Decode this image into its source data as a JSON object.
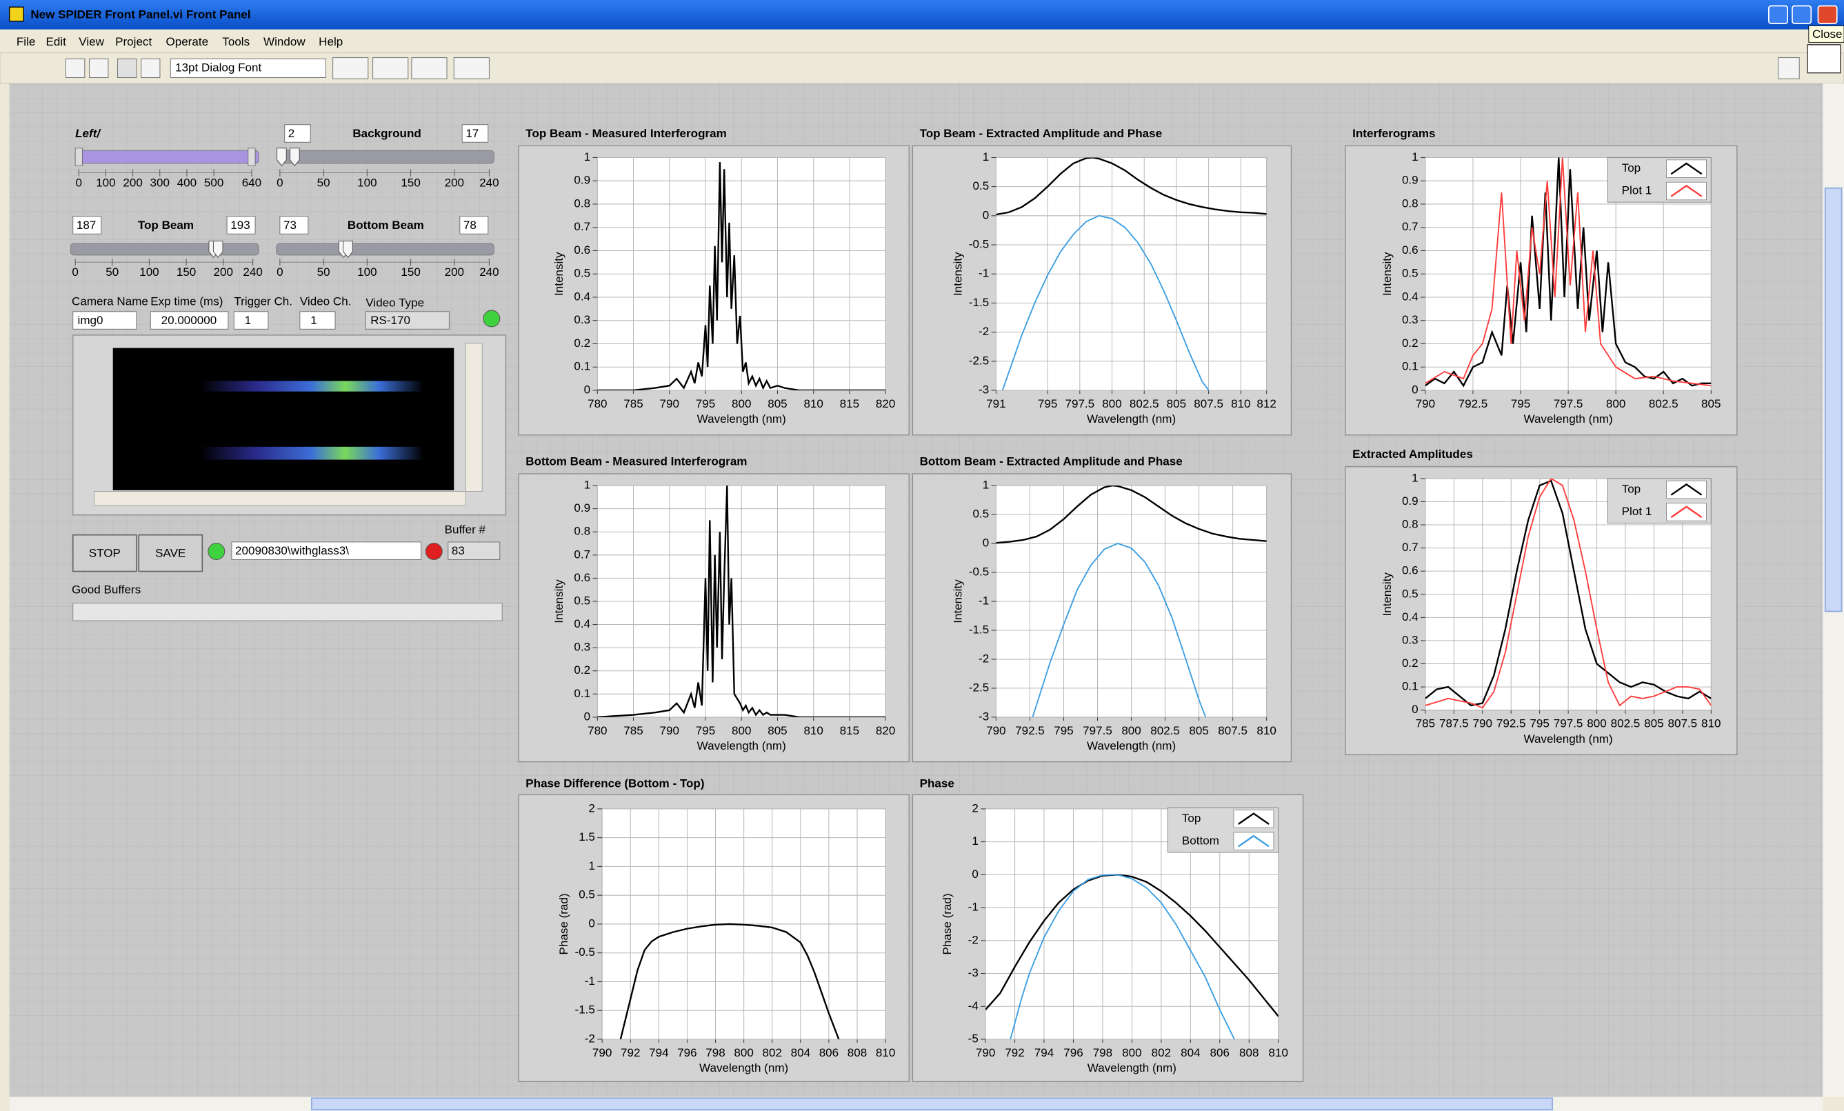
{
  "window": {
    "title": "New SPIDER Front Panel.vi Front Panel",
    "close_tip": "Close"
  },
  "menu": [
    "File",
    "Edit",
    "View",
    "Project",
    "Operate",
    "Tools",
    "Window",
    "Help"
  ],
  "toolbar": {
    "font": "13pt Dialog Font"
  },
  "controls": {
    "left": {
      "label": "Left/",
      "xlim": [
        0,
        640
      ],
      "xticks": [
        0,
        100,
        200,
        300,
        400,
        500,
        640
      ]
    },
    "background": {
      "label": "Background",
      "low": 2,
      "high": 17,
      "xlim": [
        0,
        240
      ],
      "xticks": [
        0,
        50,
        100,
        150,
        200,
        240
      ]
    },
    "top_beam": {
      "label": "Top Beam",
      "low": 187,
      "high": 193,
      "xlim": [
        0,
        240
      ],
      "xticks": [
        0,
        50,
        100,
        150,
        200,
        240
      ]
    },
    "bottom_beam": {
      "label": "Bottom Beam",
      "low": 73,
      "high": 78,
      "xlim": [
        0,
        240
      ],
      "xticks": [
        0,
        50,
        100,
        150,
        200,
        240
      ]
    },
    "camera": [
      {
        "label": "Camera Name",
        "value": "img0"
      },
      {
        "label": "Exp time (ms)",
        "value": "20.000000"
      },
      {
        "label": "Trigger Ch.",
        "value": "1"
      },
      {
        "label": "Video Ch.",
        "value": "1"
      },
      {
        "label": "Video Type",
        "value": "RS-170"
      }
    ],
    "stop": "STOP",
    "save": "SAVE",
    "path": "20090830\\withglass3\\",
    "buffer_label": "Buffer #",
    "buffer": 83,
    "good_buffers": "Good Buffers"
  },
  "chart_data": [
    {
      "type": "line",
      "title": "Top Beam - Measured Interferogram",
      "xlabel": "Wavelength (nm)",
      "ylabel": "Intensity",
      "grid": true,
      "xlim": [
        780,
        820
      ],
      "xticks": [
        780,
        785,
        790,
        795,
        800,
        805,
        810,
        815,
        820
      ],
      "ylim": [
        0,
        1
      ],
      "yticks": [
        0,
        0.1,
        0.2,
        0.3,
        0.4,
        0.5,
        0.6,
        0.7,
        0.8,
        0.9,
        1
      ],
      "series": [
        {
          "color": "#000000",
          "x": [
            780,
            785,
            788,
            790,
            791,
            792,
            793,
            793.5,
            794,
            794.5,
            795,
            795.3,
            795.6,
            796,
            796.3,
            796.6,
            797,
            797.3,
            797.6,
            798,
            798.3,
            798.6,
            799,
            799.4,
            799.8,
            800.2,
            800.6,
            801,
            801.5,
            802,
            802.5,
            803,
            803.5,
            804,
            805,
            806,
            808,
            810,
            815,
            820
          ],
          "values": [
            0,
            0,
            0.01,
            0.02,
            0.05,
            0.01,
            0.08,
            0.03,
            0.12,
            0.06,
            0.28,
            0.1,
            0.45,
            0.2,
            0.62,
            0.3,
            0.98,
            0.55,
            0.95,
            0.4,
            0.72,
            0.35,
            0.58,
            0.2,
            0.32,
            0.08,
            0.12,
            0.03,
            0.06,
            0.02,
            0.05,
            0.01,
            0.04,
            0.01,
            0.02,
            0.01,
            0,
            0,
            0,
            0
          ]
        }
      ]
    },
    {
      "type": "line",
      "title": "Top Beam - Extracted Amplitude and Phase",
      "xlabel": "Wavelength (nm)",
      "ylabel": "Intensity",
      "grid": true,
      "xlim": [
        791,
        812
      ],
      "xticks": [
        791,
        795,
        797.5,
        800,
        802.5,
        805,
        807.5,
        810,
        812
      ],
      "ylim": [
        -3,
        1
      ],
      "yticks": [
        -3,
        -2.5,
        -2,
        -1.5,
        -1,
        -0.5,
        0,
        0.5,
        1
      ],
      "series": [
        {
          "color": "#000000",
          "x": [
            791,
            792,
            793,
            794,
            795,
            796,
            797,
            798,
            798.5,
            799,
            800,
            801,
            802,
            803,
            804,
            805,
            806,
            807,
            808,
            809,
            810,
            811,
            812
          ],
          "values": [
            0.02,
            0.06,
            0.15,
            0.3,
            0.5,
            0.72,
            0.9,
            0.99,
            1,
            0.98,
            0.9,
            0.78,
            0.62,
            0.48,
            0.36,
            0.27,
            0.2,
            0.15,
            0.11,
            0.08,
            0.06,
            0.05,
            0.03
          ]
        },
        {
          "color": "#3a9ee4",
          "x": [
            791.5,
            793,
            794,
            795,
            796,
            797,
            798,
            799,
            800,
            801,
            802,
            803,
            804,
            805,
            806,
            807,
            807.5
          ],
          "values": [
            -3,
            -2.05,
            -1.5,
            -1.02,
            -0.62,
            -0.32,
            -0.1,
            0,
            -0.05,
            -0.2,
            -0.46,
            -0.82,
            -1.28,
            -1.8,
            -2.35,
            -2.85,
            -3
          ]
        }
      ]
    },
    {
      "type": "line",
      "title": "Interferograms",
      "xlabel": "Wavelength (nm)",
      "ylabel": "Intensity",
      "grid": true,
      "legend": true,
      "xlim": [
        790,
        805
      ],
      "xticks": [
        790,
        792.5,
        795,
        797.5,
        800,
        802.5,
        805
      ],
      "ylim": [
        0,
        1
      ],
      "yticks": [
        0,
        0.1,
        0.2,
        0.3,
        0.4,
        0.5,
        0.6,
        0.7,
        0.8,
        0.9,
        1
      ],
      "series": [
        {
          "name": "Top",
          "color": "#000000",
          "x": [
            790,
            790.5,
            791,
            791.5,
            792,
            792.5,
            793,
            793.5,
            794,
            794.3,
            794.6,
            795,
            795.3,
            795.6,
            796,
            796.3,
            796.6,
            797,
            797.3,
            797.6,
            798,
            798.3,
            798.6,
            799,
            799.3,
            799.6,
            800,
            800.5,
            801,
            801.5,
            802,
            802.5,
            803,
            803.5,
            804,
            804.5,
            805
          ],
          "values": [
            0.02,
            0.05,
            0.03,
            0.08,
            0.02,
            0.1,
            0.12,
            0.25,
            0.15,
            0.45,
            0.2,
            0.55,
            0.25,
            0.75,
            0.35,
            0.85,
            0.3,
            1,
            0.4,
            0.95,
            0.35,
            0.7,
            0.3,
            0.6,
            0.25,
            0.55,
            0.2,
            0.12,
            0.1,
            0.06,
            0.05,
            0.08,
            0.03,
            0.05,
            0.02,
            0.03,
            0.03
          ]
        },
        {
          "name": "Plot 1",
          "color": "#ff3b3b",
          "x": [
            790,
            791,
            792,
            792.5,
            793,
            793.5,
            794,
            794.5,
            794.8,
            795.2,
            795.6,
            796,
            796.4,
            796.8,
            797.2,
            797.6,
            798,
            798.4,
            798.8,
            799.2,
            799.6,
            800,
            801,
            802,
            803,
            804,
            805
          ],
          "values": [
            0.03,
            0.08,
            0.05,
            0.15,
            0.2,
            0.35,
            0.85,
            0.2,
            0.6,
            0.3,
            0.7,
            0.5,
            0.9,
            0.4,
            1,
            0.45,
            0.85,
            0.25,
            0.6,
            0.2,
            0.15,
            0.1,
            0.05,
            0.06,
            0.04,
            0.03,
            0.02
          ]
        }
      ]
    },
    {
      "type": "line",
      "title": "Bottom Beam - Measured Interferogram",
      "xlabel": "Wavelength (nm)",
      "ylabel": "Intensity",
      "grid": true,
      "xlim": [
        780,
        820
      ],
      "xticks": [
        780,
        785,
        790,
        795,
        800,
        805,
        810,
        815,
        820
      ],
      "ylim": [
        0,
        1
      ],
      "yticks": [
        0,
        0.1,
        0.2,
        0.3,
        0.4,
        0.5,
        0.6,
        0.7,
        0.8,
        0.9,
        1
      ],
      "series": [
        {
          "color": "#000000",
          "x": [
            780,
            785,
            788,
            790,
            791,
            792,
            793,
            793.5,
            794,
            794.5,
            795,
            795.3,
            795.6,
            796,
            796.3,
            796.6,
            797,
            797.3,
            797.6,
            798,
            798.3,
            798.6,
            799,
            799.4,
            799.8,
            800.2,
            800.6,
            801,
            801.5,
            802,
            802.5,
            803,
            803.5,
            804,
            805,
            806,
            808,
            810,
            815,
            820
          ],
          "values": [
            0,
            0.01,
            0.02,
            0.03,
            0.06,
            0.02,
            0.1,
            0.04,
            0.15,
            0.05,
            0.6,
            0.2,
            0.85,
            0.15,
            0.7,
            0.3,
            0.8,
            0.25,
            0.6,
            1,
            0.4,
            0.6,
            0.1,
            0.08,
            0.06,
            0.03,
            0.05,
            0.02,
            0.04,
            0.01,
            0.03,
            0.01,
            0.02,
            0.01,
            0.01,
            0.01,
            0,
            0,
            0,
            0
          ]
        }
      ]
    },
    {
      "type": "line",
      "title": "Bottom Beam - Extracted Amplitude and Phase",
      "xlabel": "Wavelength (nm)",
      "ylabel": "Intensity",
      "grid": true,
      "xlim": [
        790,
        810
      ],
      "xticks": [
        790,
        792.5,
        795,
        797.5,
        800,
        802.5,
        805,
        807.5,
        810
      ],
      "ylim": [
        -3,
        1
      ],
      "yticks": [
        -3,
        -2.5,
        -2,
        -1.5,
        -1,
        -0.5,
        0,
        0.5,
        1
      ],
      "series": [
        {
          "color": "#000000",
          "x": [
            790,
            791,
            792,
            793,
            794,
            795,
            796,
            797,
            798,
            798.6,
            799,
            800,
            801,
            802,
            803,
            804,
            805,
            806,
            807,
            808,
            809,
            810
          ],
          "values": [
            0.01,
            0.03,
            0.06,
            0.12,
            0.24,
            0.42,
            0.64,
            0.84,
            0.97,
            1,
            0.99,
            0.92,
            0.8,
            0.64,
            0.48,
            0.35,
            0.25,
            0.17,
            0.12,
            0.08,
            0.06,
            0.04
          ]
        },
        {
          "color": "#3a9ee4",
          "x": [
            792.7,
            794,
            795,
            796,
            797,
            798,
            799,
            800,
            801,
            802,
            803,
            804,
            805,
            805.5
          ],
          "values": [
            -3,
            -2.05,
            -1.4,
            -0.8,
            -0.38,
            -0.1,
            0,
            -0.08,
            -0.32,
            -0.72,
            -1.28,
            -1.98,
            -2.7,
            -3
          ]
        }
      ]
    },
    {
      "type": "line",
      "title": "Extracted Amplitudes",
      "xlabel": "Wavelength (nm)",
      "ylabel": "Intensity",
      "grid": true,
      "legend": true,
      "xlim": [
        785,
        810
      ],
      "xticks": [
        785,
        787.5,
        790,
        792.5,
        795,
        797.5,
        800,
        802.5,
        805,
        807.5,
        810
      ],
      "ylim": [
        0,
        1
      ],
      "yticks": [
        0,
        0.1,
        0.2,
        0.3,
        0.4,
        0.5,
        0.6,
        0.7,
        0.8,
        0.9,
        1
      ],
      "series": [
        {
          "name": "Top",
          "color": "#000000",
          "x": [
            785,
            786,
            787,
            788,
            789,
            790,
            791,
            792,
            793,
            794,
            795,
            796,
            797,
            798,
            799,
            800,
            801,
            802,
            803,
            804,
            805,
            806,
            807,
            808,
            809,
            810
          ],
          "values": [
            0.05,
            0.09,
            0.1,
            0.06,
            0.02,
            0.03,
            0.15,
            0.35,
            0.6,
            0.82,
            0.97,
            0.99,
            0.85,
            0.6,
            0.35,
            0.2,
            0.16,
            0.12,
            0.1,
            0.12,
            0.11,
            0.08,
            0.06,
            0.05,
            0.08,
            0.05
          ]
        },
        {
          "name": "Plot 1",
          "color": "#ff3b3b",
          "x": [
            785,
            787,
            789,
            790,
            791,
            792,
            793,
            794,
            795,
            796,
            797,
            798,
            799,
            800,
            801,
            802,
            803,
            804,
            805,
            806,
            807,
            808,
            809,
            810
          ],
          "values": [
            0.02,
            0.05,
            0.03,
            0.01,
            0.08,
            0.25,
            0.5,
            0.75,
            0.92,
            1,
            0.97,
            0.82,
            0.6,
            0.35,
            0.12,
            0.02,
            0.06,
            0.05,
            0.06,
            0.08,
            0.1,
            0.1,
            0.09,
            0.02
          ]
        }
      ]
    },
    {
      "type": "line",
      "title": "Phase Difference (Bottom - Top)",
      "xlabel": "Wavelength (nm)",
      "ylabel": "Phase (rad)",
      "grid": true,
      "xlim": [
        790,
        810
      ],
      "xticks": [
        790,
        792,
        794,
        796,
        798,
        800,
        802,
        804,
        806,
        808,
        810
      ],
      "ylim": [
        -2,
        2
      ],
      "yticks": [
        -2,
        -1.5,
        -1,
        -0.5,
        0,
        0.5,
        1,
        1.5,
        2
      ],
      "series": [
        {
          "color": "#000000",
          "x": [
            791.3,
            792,
            792.5,
            793,
            793.5,
            794,
            795,
            796,
            797,
            798,
            799,
            800,
            801,
            802,
            803,
            804,
            804.5,
            805,
            805.5,
            806,
            806.7
          ],
          "values": [
            -2,
            -1.3,
            -0.8,
            -0.45,
            -0.3,
            -0.22,
            -0.14,
            -0.08,
            -0.04,
            -0.01,
            0,
            -0.01,
            -0.03,
            -0.06,
            -0.14,
            -0.32,
            -0.55,
            -0.85,
            -1.2,
            -1.55,
            -2
          ]
        }
      ]
    },
    {
      "type": "line",
      "title": "Phase",
      "xlabel": "Wavelength (nm)",
      "ylabel": "Phase (rad)",
      "grid": true,
      "legend": true,
      "xlim": [
        790,
        810
      ],
      "xticks": [
        790,
        792,
        794,
        796,
        798,
        800,
        802,
        804,
        806,
        808,
        810
      ],
      "ylim": [
        -5,
        2
      ],
      "yticks": [
        -5,
        -4,
        -3,
        -2,
        -1,
        0,
        1,
        2
      ],
      "series": [
        {
          "name": "Top",
          "color": "#000000",
          "x": [
            790,
            791,
            792,
            793,
            794,
            795,
            796,
            797,
            798,
            799,
            800,
            801,
            802,
            803,
            804,
            805,
            806,
            807,
            808,
            809,
            810
          ],
          "values": [
            -4.1,
            -3.6,
            -2.8,
            -2.05,
            -1.4,
            -0.85,
            -0.45,
            -0.18,
            -0.03,
            0,
            -0.06,
            -0.22,
            -0.5,
            -0.85,
            -1.25,
            -1.7,
            -2.2,
            -2.7,
            -3.2,
            -3.75,
            -4.3
          ]
        },
        {
          "name": "Bottom",
          "color": "#3a9ee4",
          "x": [
            791.7,
            792.5,
            793,
            794,
            795,
            796,
            797,
            798,
            799,
            800,
            801,
            802,
            803,
            804,
            805,
            806,
            807
          ],
          "values": [
            -5,
            -3.7,
            -3,
            -1.9,
            -1.1,
            -0.5,
            -0.15,
            -0.01,
            0,
            -0.12,
            -0.4,
            -0.85,
            -1.5,
            -2.3,
            -3.1,
            -4.1,
            -5
          ]
        }
      ]
    }
  ]
}
